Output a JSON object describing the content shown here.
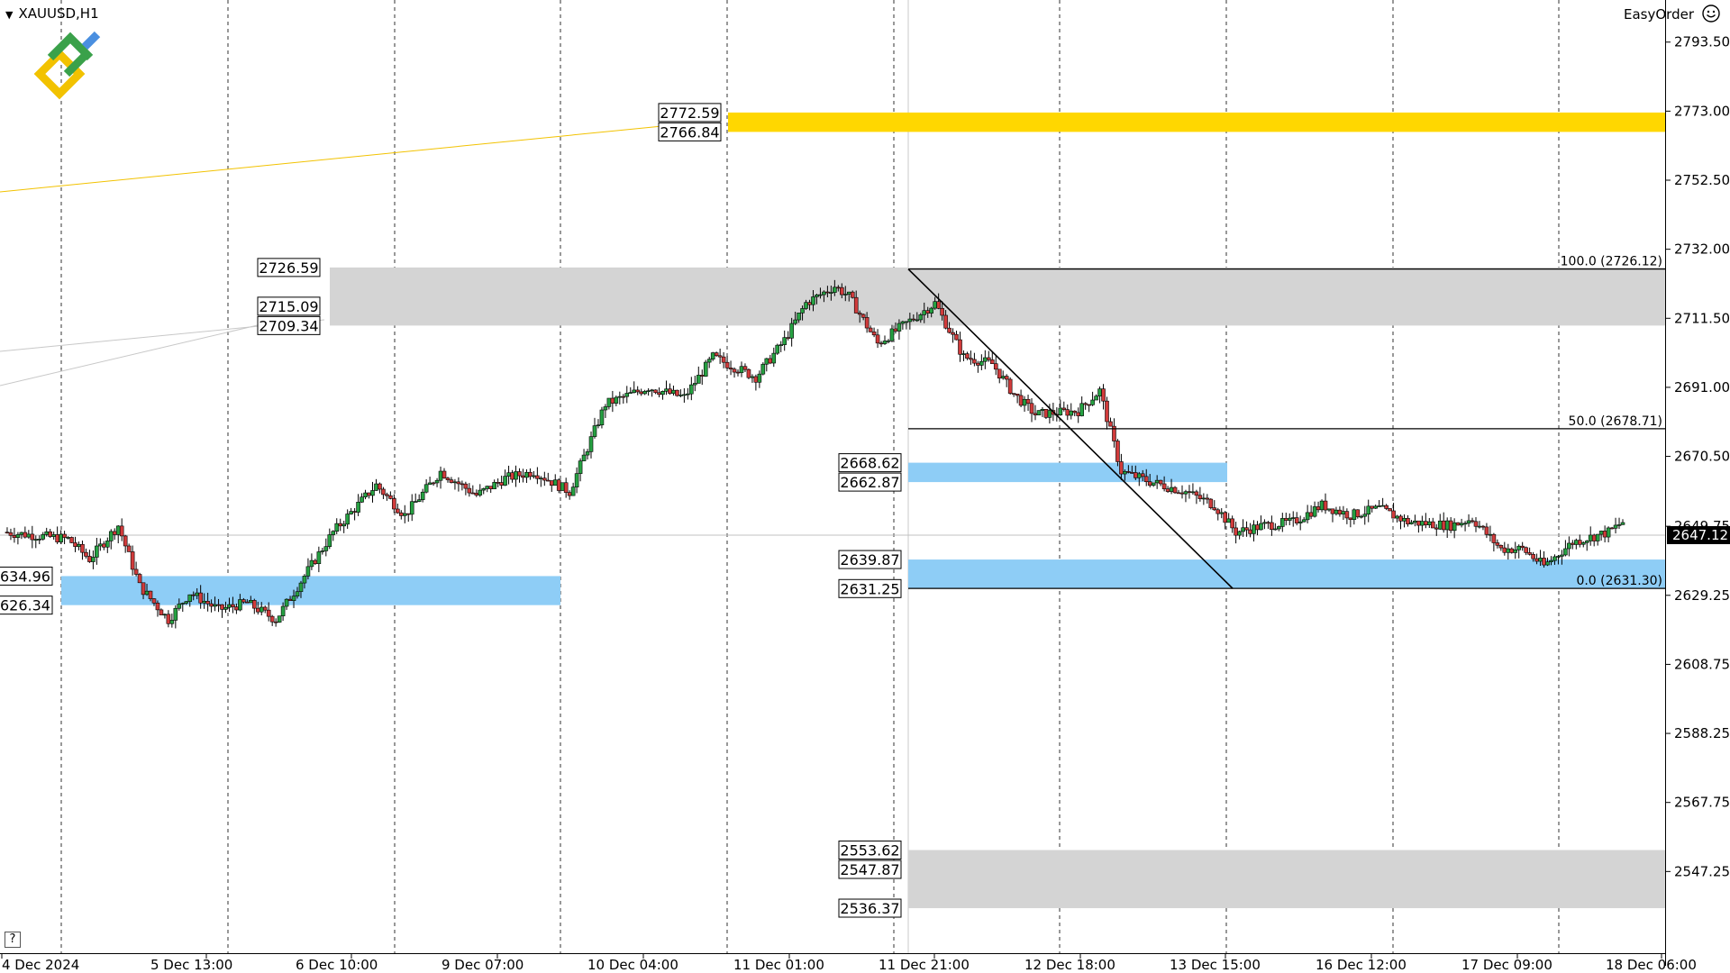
{
  "symbol_label": "XAUUSD,H1",
  "trade_panel": {
    "label": "EasyOrder",
    "icon": "smiley-icon"
  },
  "help_label": "?",
  "colors": {
    "bull": "#26a142",
    "bear": "#d13b3b",
    "supply_zone": "#d4d4d4",
    "demand_zone": "#8ecdf6",
    "target_zone": "#ffd700",
    "trendline": "#f2c200",
    "fib": "#000000",
    "current_price_bg": "#000000"
  },
  "chart_data": {
    "type": "candlestick",
    "ylim": [
      2523,
      2806
    ],
    "y_ticks": [
      "2793.50",
      "2773.00",
      "2752.50",
      "2732.00",
      "2711.50",
      "2691.00",
      "2670.50",
      "2649.75",
      "2629.25",
      "2608.75",
      "2588.25",
      "2567.75",
      "2547.25"
    ],
    "x_labels": [
      "4 Dec 2024",
      "5 Dec 13:00",
      "6 Dec 10:00",
      "9 Dec 07:00",
      "10 Dec 04:00",
      "11 Dec 01:00",
      "11 Dec 21:00",
      "12 Dec 18:00",
      "13 Dec 15:00",
      "16 Dec 12:00",
      "17 Dec 09:00",
      "18 Dec 06:00"
    ],
    "current_price": "2647.12",
    "zones": [
      {
        "kind": "target",
        "top": 2772.59,
        "bottom": 2766.84,
        "labels": [
          "2772.59",
          "2766.84"
        ]
      },
      {
        "kind": "supply",
        "top": 2726.59,
        "bottom": 2709.34,
        "labels": [
          "2726.59",
          "2715.09",
          "2709.34"
        ]
      },
      {
        "kind": "demand",
        "top": 2668.62,
        "bottom": 2662.87,
        "labels": [
          "2668.62",
          "2662.87"
        ]
      },
      {
        "kind": "demand",
        "top": 2639.87,
        "bottom": 2631.25,
        "labels": [
          "2639.87",
          "2631.25"
        ]
      },
      {
        "kind": "demand",
        "top": 2634.96,
        "bottom": 2626.34,
        "labels": [
          "634.96",
          "626.34"
        ]
      },
      {
        "kind": "supply",
        "top": 2553.62,
        "bottom": 2536.37,
        "labels": [
          "2553.62",
          "2547.87",
          "2536.37"
        ]
      }
    ],
    "fibonacci": [
      {
        "level": "100.0 (2726.12)",
        "price": 2726.12
      },
      {
        "level": "50.0 (2678.71)",
        "price": 2678.71
      },
      {
        "level": "0.0 (2631.30)",
        "price": 2631.3
      }
    ],
    "waypoints": [
      [
        0,
        2648
      ],
      [
        18,
        2646
      ],
      [
        24,
        2640
      ],
      [
        32,
        2650
      ],
      [
        38,
        2632
      ],
      [
        46,
        2622
      ],
      [
        52,
        2630
      ],
      [
        60,
        2625
      ],
      [
        68,
        2627
      ],
      [
        76,
        2622
      ],
      [
        92,
        2648
      ],
      [
        104,
        2662
      ],
      [
        112,
        2653
      ],
      [
        122,
        2666
      ],
      [
        132,
        2659
      ],
      [
        140,
        2664
      ],
      [
        148,
        2666
      ],
      [
        158,
        2660
      ],
      [
        168,
        2686
      ],
      [
        180,
        2691
      ],
      [
        190,
        2688
      ],
      [
        198,
        2700
      ],
      [
        210,
        2694
      ],
      [
        218,
        2705
      ],
      [
        224,
        2716
      ],
      [
        232,
        2721
      ],
      [
        236,
        2718
      ],
      [
        244,
        2704
      ],
      [
        252,
        2710
      ],
      [
        260,
        2716
      ],
      [
        268,
        2700
      ],
      [
        276,
        2698
      ],
      [
        282,
        2689
      ],
      [
        288,
        2683
      ],
      [
        300,
        2684
      ],
      [
        306,
        2690
      ],
      [
        312,
        2666
      ],
      [
        320,
        2663
      ],
      [
        330,
        2660
      ],
      [
        338,
        2656
      ],
      [
        344,
        2648
      ],
      [
        352,
        2650
      ],
      [
        360,
        2651
      ],
      [
        368,
        2656
      ],
      [
        376,
        2653
      ],
      [
        384,
        2655
      ],
      [
        392,
        2651
      ],
      [
        404,
        2650
      ],
      [
        410,
        2652
      ],
      [
        418,
        2643
      ],
      [
        424,
        2643
      ],
      [
        430,
        2638
      ],
      [
        438,
        2645
      ],
      [
        448,
        2648
      ],
      [
        452,
        2651
      ]
    ]
  }
}
